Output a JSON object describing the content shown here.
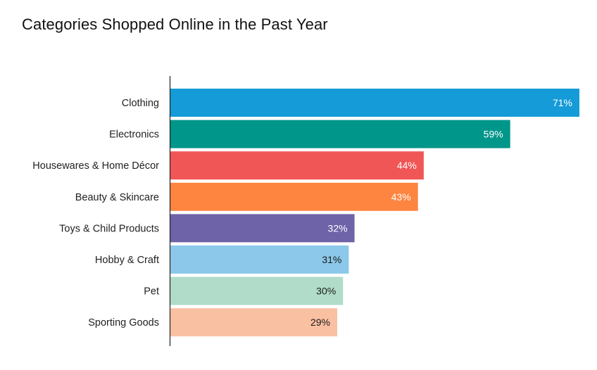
{
  "chart_data": {
    "type": "bar",
    "orientation": "horizontal",
    "title": "Categories Shopped Online in the Past Year",
    "xlabel": "",
    "ylabel": "",
    "xlim": [
      0,
      71
    ],
    "grid": false,
    "legend": "none",
    "categories": [
      "Clothing",
      "Electronics",
      "Housewares & Home Décor",
      "Beauty & Skincare",
      "Toys & Child Products",
      "Hobby & Craft",
      "Pet",
      "Sporting Goods"
    ],
    "values": [
      71,
      59,
      44,
      43,
      32,
      31,
      30,
      29
    ],
    "value_labels": [
      "71%",
      "59%",
      "44%",
      "43%",
      "32%",
      "31%",
      "30%",
      "29%"
    ],
    "colors": [
      "#159bd7",
      "#00968a",
      "#f15656",
      "#fd8540",
      "#6e62a8",
      "#8bc8e9",
      "#b0dcc9",
      "#fac0a2"
    ],
    "label_colors": [
      "#ffffff",
      "#ffffff",
      "#ffffff",
      "#ffffff",
      "#ffffff",
      "#1a1a1a",
      "#1a1a1a",
      "#1a1a1a"
    ]
  }
}
